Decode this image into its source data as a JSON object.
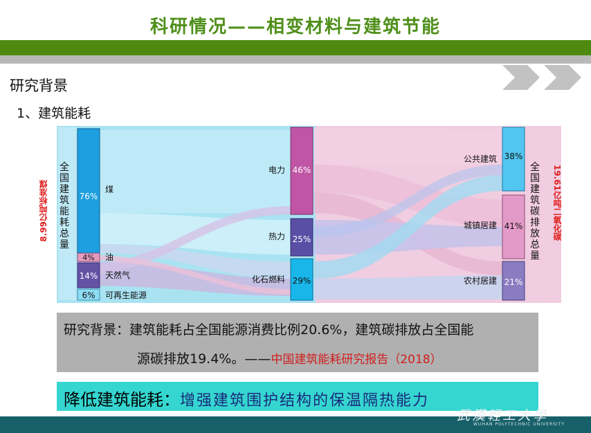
{
  "slide": {
    "title": "科研情况——相变材料与建筑节能",
    "section": "研究背景",
    "subsection": "1、建筑能耗"
  },
  "diagram": {
    "left_node_label": "全国建筑能耗总量",
    "left_total": "8.99亿吨标准煤",
    "right_node_label": "全国建筑碳排放总量",
    "right_total": "19.61亿吨二氧化碳",
    "sources": [
      {
        "label": "煤",
        "value": "76%"
      },
      {
        "label": "油",
        "value": "4%"
      },
      {
        "label": "天然气",
        "value": "14%"
      },
      {
        "label": "可再生能源",
        "value": "6%"
      }
    ],
    "carriers": [
      {
        "label": "电力",
        "value": "46%"
      },
      {
        "label": "热力",
        "value": "25%"
      },
      {
        "label": "化石燃料",
        "value": "29%"
      }
    ],
    "sectors": [
      {
        "label": "公共建筑",
        "value": "38%"
      },
      {
        "label": "城镇居建",
        "value": "41%"
      },
      {
        "label": "农村居建",
        "value": "21%"
      }
    ]
  },
  "background": {
    "line1": "研究背景：建筑能耗占全国能源消费比例20.6%，建筑碳排放占全国能",
    "line2": "源碳排放19.4%。——",
    "source": "中国建筑能耗研究报告（2018）"
  },
  "conclusion": {
    "lead": "降低建筑能耗：",
    "text": "增强建筑围护结构的保温隔热能力"
  },
  "footer": {
    "logo_text": "武漢輕工大學",
    "logo_english": "WUHAN POLYTECHNIC UNIVERSITY"
  },
  "colors": {
    "title": "#4f8f1a",
    "band_green": "#4f8a10",
    "sankey_bg": "#a9e3f2",
    "coal": "#1e9fe0",
    "oil": "#e49bbf",
    "gas": "#6452a5",
    "renewable": "#8ddcf4",
    "electric": "#c055a5",
    "heat": "#5a4ea5",
    "fossil": "#19b6ea",
    "public": "#52c6f0",
    "urban": "#e49ac8",
    "rural": "#8a7cc0",
    "highlight_red": "#e02020",
    "strip": "#35d6d0"
  }
}
